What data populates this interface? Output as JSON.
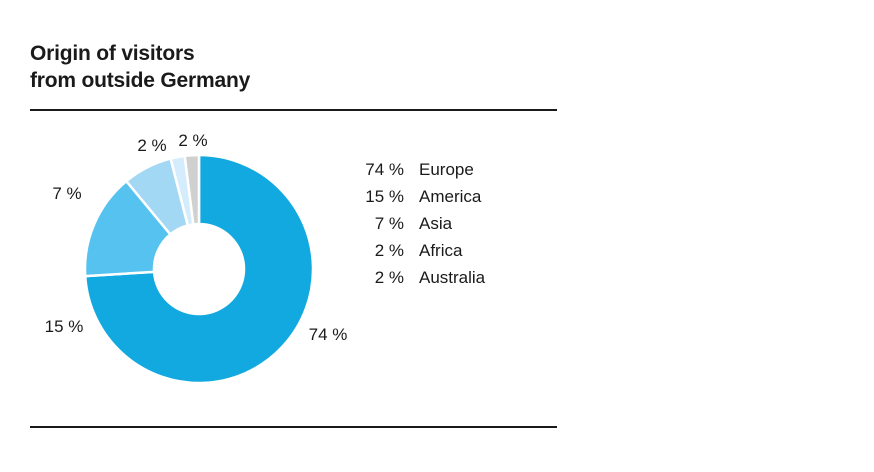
{
  "title_lines": [
    "Origin of visitors",
    "from outside Germany"
  ],
  "chart_data": {
    "type": "pie",
    "variant": "donut",
    "categories": [
      "Europe",
      "America",
      "Asia",
      "Africa",
      "Australia"
    ],
    "values": [
      74,
      15,
      7,
      2,
      2
    ],
    "value_labels": [
      "74 %",
      "15 %",
      "7 %",
      "2 %",
      "2 %"
    ],
    "legend_values": [
      "74 %",
      "15 %",
      "7 %",
      "2 %",
      "2 %"
    ],
    "colors": [
      "#12a9e0",
      "#56c2ef",
      "#a3d8f5",
      "#d4ecfb",
      "#d0d0d0"
    ],
    "legend_placement": "right",
    "slice_border_color": "#ffffff"
  }
}
